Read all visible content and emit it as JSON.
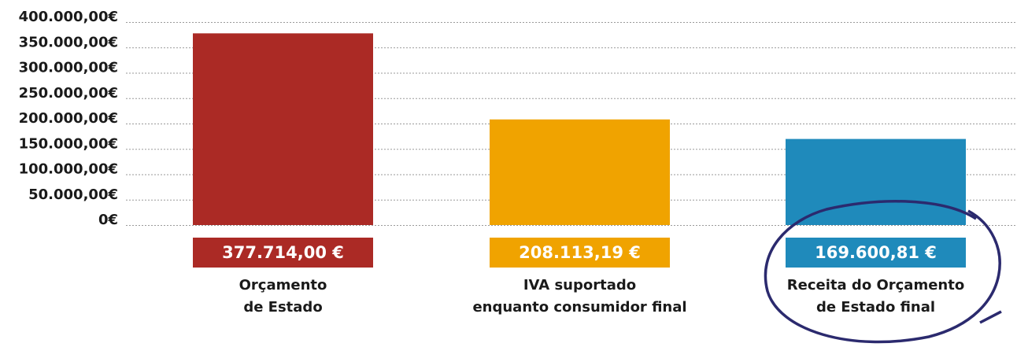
{
  "chart_data": {
    "type": "bar",
    "categories": [
      [
        "Orçamento",
        "de Estado"
      ],
      [
        "IVA suportado",
        "enquanto consumidor final"
      ],
      [
        "Receita do Orçamento",
        "de Estado final"
      ]
    ],
    "values": [
      377714.0,
      208113.19,
      169600.81
    ],
    "value_labels": [
      "377.714,00 €",
      "208.113,19 €",
      "169.600,81 €"
    ],
    "colors": [
      "#ab2a25",
      "#f0a300",
      "#1f8abb"
    ],
    "ylim": [
      0,
      400000
    ],
    "yticks": [
      {
        "value": 0,
        "label": "0€"
      },
      {
        "value": 50000,
        "label": "50.000,00€"
      },
      {
        "value": 100000,
        "label": "100.000,00€"
      },
      {
        "value": 150000,
        "label": "150.000,00€"
      },
      {
        "value": 200000,
        "label": "200.000,00€"
      },
      {
        "value": 250000,
        "label": "250.000,00€"
      },
      {
        "value": 300000,
        "label": "300.000,00€"
      },
      {
        "value": 350000,
        "label": "350.000,00€"
      },
      {
        "value": 400000,
        "label": "400.000,00€"
      }
    ],
    "grid": true
  }
}
